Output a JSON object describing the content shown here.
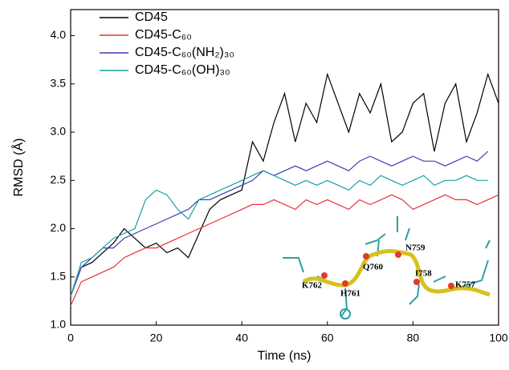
{
  "chart_data": {
    "type": "line",
    "x_label": "Time (ns)",
    "y_label": "RMSD (Å)",
    "x": [
      0,
      2.5,
      5,
      7.5,
      10,
      12.5,
      15,
      17.5,
      20,
      22.5,
      25,
      27.5,
      30,
      32.5,
      35,
      37.5,
      40,
      42.5,
      45,
      47.5,
      50,
      52.5,
      55,
      57.5,
      60,
      62.5,
      65,
      67.5,
      70,
      72.5,
      75,
      77.5,
      80,
      82.5,
      85,
      87.5,
      90,
      92.5,
      95,
      97.5,
      100
    ],
    "series": [
      {
        "name": "CD45",
        "color": "#000000",
        "values": [
          1.3,
          1.6,
          1.65,
          1.75,
          1.85,
          2.0,
          1.9,
          1.8,
          1.85,
          1.75,
          1.8,
          1.7,
          1.95,
          2.2,
          2.3,
          2.35,
          2.4,
          2.9,
          2.7,
          3.1,
          3.4,
          2.9,
          3.3,
          3.1,
          3.6,
          3.3,
          3.0,
          3.4,
          3.2,
          3.5,
          2.9,
          3.0,
          3.3,
          3.4,
          2.8,
          3.3,
          3.5,
          2.9,
          3.2,
          3.6,
          3.3
        ]
      },
      {
        "name": "CD45-C₆₀",
        "color": "#e8313a",
        "values": [
          1.2,
          1.45,
          1.5,
          1.55,
          1.6,
          1.7,
          1.75,
          1.8,
          1.8,
          1.85,
          1.9,
          1.95,
          2.0,
          2.05,
          2.1,
          2.15,
          2.2,
          2.25,
          2.25,
          2.3,
          2.25,
          2.2,
          2.3,
          2.25,
          2.3,
          2.25,
          2.2,
          2.3,
          2.25,
          2.3,
          2.35,
          2.3,
          2.2,
          2.25,
          2.3,
          2.35,
          2.3,
          2.3,
          2.25,
          2.3,
          2.35
        ]
      },
      {
        "name": "CD45-C₆₀(NH₂)₃₀",
        "color": "#3c3cb4",
        "values": [
          1.3,
          1.6,
          1.7,
          1.8,
          1.8,
          1.9,
          1.95,
          2.0,
          2.05,
          2.1,
          2.15,
          2.2,
          2.3,
          2.3,
          2.35,
          2.4,
          2.45,
          2.5,
          2.6,
          2.55,
          2.6,
          2.65,
          2.6,
          2.65,
          2.7,
          2.65,
          2.6,
          2.7,
          2.75,
          2.7,
          2.65,
          2.7,
          2.75,
          2.7,
          2.7,
          2.65,
          2.7,
          2.75,
          2.7,
          2.8,
          null
        ]
      },
      {
        "name": "CD45-C₆₀(OH)₃₀",
        "color": "#18a0a0",
        "values": [
          1.3,
          1.65,
          1.7,
          1.8,
          1.9,
          1.95,
          2.0,
          2.3,
          2.4,
          2.35,
          2.2,
          2.1,
          2.3,
          2.35,
          2.4,
          2.45,
          2.5,
          2.55,
          2.6,
          2.55,
          2.5,
          2.45,
          2.5,
          2.45,
          2.5,
          2.45,
          2.4,
          2.5,
          2.45,
          2.55,
          2.5,
          2.45,
          2.5,
          2.55,
          2.45,
          2.5,
          2.5,
          2.55,
          2.5,
          2.5,
          null
        ]
      }
    ],
    "xlim": [
      0,
      100
    ],
    "xticks": [
      0,
      20,
      40,
      60,
      80,
      100
    ],
    "ylim": [
      1,
      4.27
    ],
    "yticks": [
      {
        "value": 1,
        "label": "1.0"
      },
      1.5,
      {
        "value": 2,
        "label": "2.0"
      },
      2.5,
      {
        "value": 3,
        "label": "3.0"
      },
      3.5,
      {
        "value": 4,
        "label": "4.0"
      }
    ],
    "legend": "upper-left",
    "annotations": [
      "K762",
      "H761",
      "Q760",
      "N759",
      "I758",
      "K757"
    ]
  }
}
